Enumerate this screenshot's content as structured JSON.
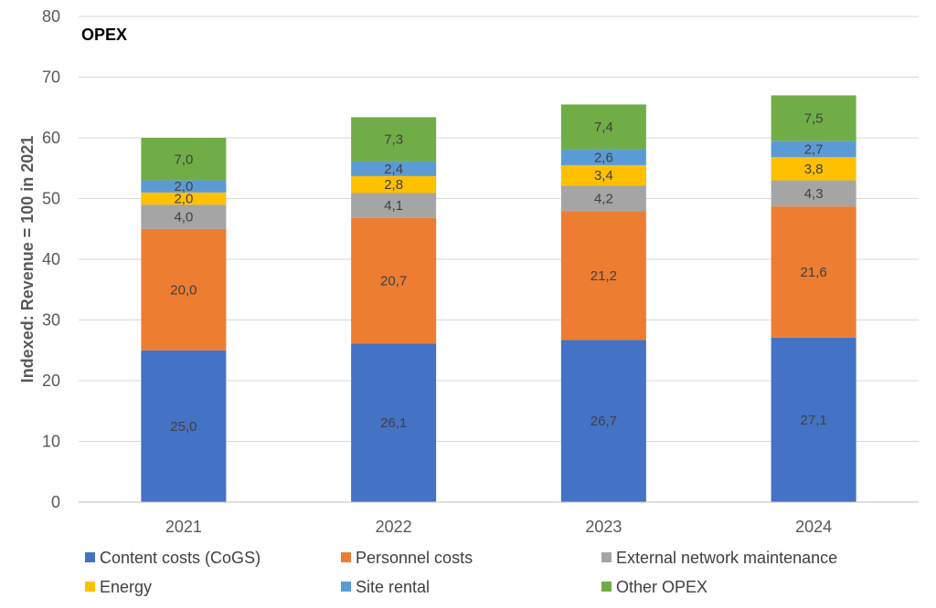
{
  "chart_data": {
    "type": "bar",
    "stacked": true,
    "title": "OPEX",
    "ylabel": "Indexed: Revenue = 100 in 2021",
    "xlabel": "",
    "ylim": [
      0,
      80
    ],
    "yticks": [
      0,
      10,
      20,
      30,
      40,
      50,
      60,
      70,
      80
    ],
    "grid": true,
    "legend_position": "bottom",
    "categories": [
      "2021",
      "2022",
      "2023",
      "2024"
    ],
    "series": [
      {
        "name": "Content costs (CoGS)",
        "color": "#4472C4",
        "values": [
          25.0,
          26.1,
          26.7,
          27.1
        ],
        "labels": [
          "25,0",
          "26,1",
          "26,7",
          "27,1"
        ]
      },
      {
        "name": "Personnel costs",
        "color": "#ED7D31",
        "values": [
          20.0,
          20.7,
          21.2,
          21.6
        ],
        "labels": [
          "20,0",
          "20,7",
          "21,2",
          "21,6"
        ]
      },
      {
        "name": "External network maintenance",
        "color": "#A5A5A5",
        "values": [
          4.0,
          4.1,
          4.2,
          4.3
        ],
        "labels": [
          "4,0",
          "4,1",
          "4,2",
          "4,3"
        ]
      },
      {
        "name": "Energy",
        "color": "#FFC000",
        "values": [
          2.0,
          2.8,
          3.4,
          3.8
        ],
        "labels": [
          "2,0",
          "2,8",
          "3,4",
          "3,8"
        ]
      },
      {
        "name": "Site rental",
        "color": "#5B9BD5",
        "values": [
          2.0,
          2.4,
          2.6,
          2.7
        ],
        "labels": [
          "2,0",
          "2,4",
          "2,6",
          "2,7"
        ]
      },
      {
        "name": "Other OPEX",
        "color": "#70AD47",
        "values": [
          7.0,
          7.3,
          7.4,
          7.5
        ],
        "labels": [
          "7,0",
          "7,3",
          "7,4",
          "7,5"
        ]
      }
    ]
  }
}
